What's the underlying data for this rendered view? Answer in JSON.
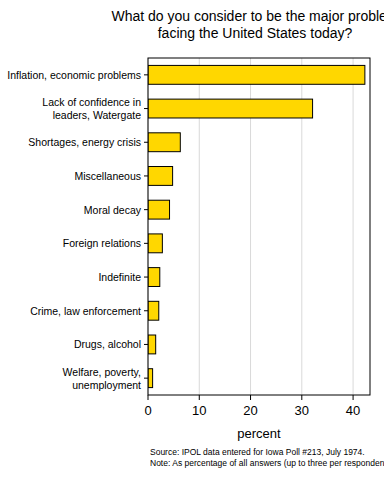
{
  "chart_data": {
    "type": "bar",
    "orientation": "horizontal",
    "title": "What do you consider to be the major problem facing the United States today?",
    "xlabel": "percent",
    "categories": [
      "Inflation, economic problems",
      "Lack of confidence in leaders, Watergate",
      "Shortages, energy crisis",
      "Miscellaneous",
      "Moral decay",
      "Foreign relations",
      "Indefinite",
      "Crime, law enforcement",
      "Drugs, alcohol",
      "Welfare, poverty, unemployment"
    ],
    "values": [
      42.3,
      32.1,
      6.3,
      4.8,
      4.2,
      2.8,
      2.3,
      2.1,
      1.5,
      0.9
    ],
    "color": "#ffd700",
    "xlim": [
      0,
      43.3
    ],
    "xticks": [
      0,
      10,
      20,
      30,
      40
    ],
    "grid": true,
    "notes": [
      "Source: IPOL data entered for Iowa Poll #213, July 1974.",
      "Note: As percentage of all answers (up to three per respondent)."
    ]
  }
}
